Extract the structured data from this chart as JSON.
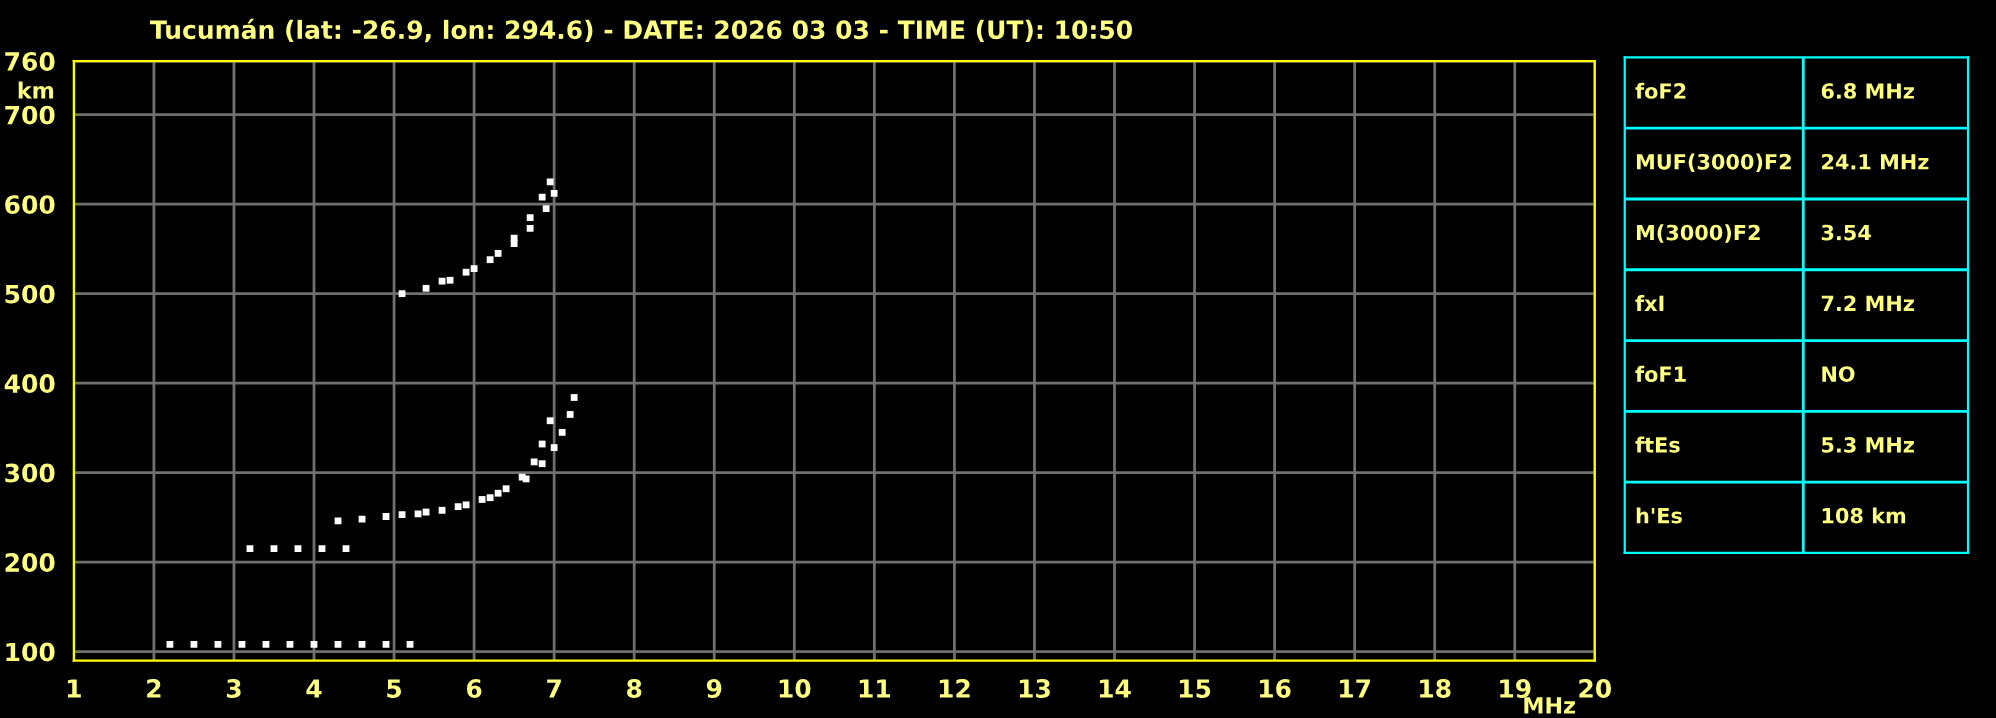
{
  "chart_data": [
    {
      "type": "scatter",
      "title": "Tucumán (lat: -26.9, lon: 294.6) - DATE: 2026 03 03 - TIME (UT): 10:50",
      "xlabel": "MHz",
      "ylabel": "km",
      "marker": "square",
      "grid": true,
      "xlim": [
        1,
        20
      ],
      "xticks": [
        1,
        2,
        3,
        4,
        5,
        6,
        7,
        8,
        9,
        10,
        11,
        12,
        13,
        14,
        15,
        16,
        17,
        18,
        19,
        20
      ],
      "ylim": [
        90,
        760
      ],
      "yticks": [
        100,
        200,
        300,
        400,
        500,
        600,
        700,
        760
      ],
      "series": [
        {
          "color": "#ffffff",
          "x": [
            2.2,
            2.5,
            2.8,
            3.1,
            3.4,
            3.7,
            4.0,
            4.3,
            4.6,
            4.9,
            5.2
          ],
          "values": [
            108,
            108,
            108,
            108,
            108,
            108,
            108,
            108,
            108,
            108,
            108
          ]
        },
        {
          "color": "#ffffff",
          "x": [
            3.2,
            3.5,
            3.8,
            4.1,
            4.4
          ],
          "values": [
            215,
            215,
            215,
            215,
            215
          ]
        },
        {
          "color": "#ffffff",
          "x": [
            4.3,
            4.6,
            4.9,
            5.3,
            5.6,
            5.9,
            6.2,
            6.4,
            6.6,
            6.75,
            6.85,
            6.95
          ],
          "values": [
            246,
            248,
            251,
            254,
            258,
            264,
            272,
            282,
            295,
            312,
            332,
            358
          ]
        },
        {
          "color": "#ffffff",
          "x": [
            5.1,
            5.4,
            5.8,
            6.1,
            6.3,
            6.65,
            6.85,
            7.0,
            7.1,
            7.2,
            7.25
          ],
          "values": [
            253,
            256,
            262,
            270,
            277,
            293,
            310,
            328,
            345,
            365,
            384
          ]
        },
        {
          "color": "#ffffff",
          "x": [
            5.1,
            5.4,
            5.7,
            6.0,
            6.3,
            6.5,
            6.7,
            6.85,
            6.95
          ],
          "values": [
            500,
            506,
            515,
            528,
            545,
            562,
            585,
            608,
            625
          ]
        },
        {
          "color": "#ffffff",
          "x": [
            5.6,
            5.9,
            6.2,
            6.5,
            6.7,
            6.9,
            7.0
          ],
          "values": [
            514,
            524,
            538,
            556,
            573,
            595,
            612
          ]
        }
      ]
    },
    {
      "type": "other",
      "annotations": [
        "foF2",
        "6.8 MHz",
        "MUF(3000)F2",
        "24.1 MHz",
        "M(3000)F2",
        "3.54",
        "fxI",
        "7.2 MHz",
        "foF1",
        "NO",
        "ftEs",
        "5.3 MHz",
        "h'Es",
        "108 km"
      ]
    }
  ]
}
